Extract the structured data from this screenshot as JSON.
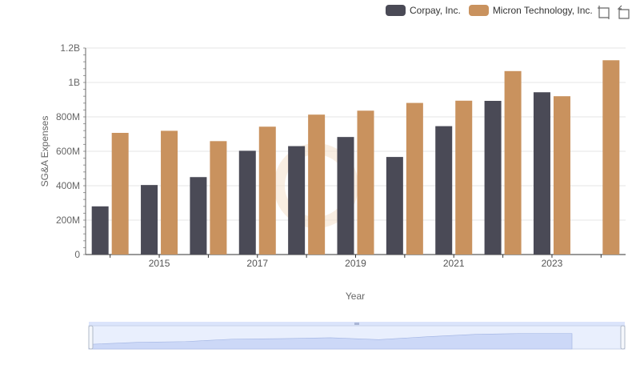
{
  "chart_data": {
    "type": "bar",
    "title": "",
    "xlabel": "Year",
    "ylabel": "SG&A Expenses",
    "x": [
      2014,
      2015,
      2016,
      2017,
      2018,
      2019,
      2020,
      2021,
      2022,
      2023,
      2024
    ],
    "xticks": [
      "2015",
      "2017",
      "2019",
      "2021",
      "2023"
    ],
    "ylim": [
      0,
      1200000000
    ],
    "yticks": [
      "0",
      "200M",
      "400M",
      "600M",
      "800M",
      "1B",
      "1.2B"
    ],
    "grid": true,
    "legend_position": "top-right",
    "series": [
      {
        "name": "Corpay, Inc.",
        "color": "#4a4a56",
        "values": [
          280000000,
          404000000,
          450000000,
          603000000,
          630000000,
          683000000,
          567000000,
          746000000,
          893000000,
          943000000,
          null
        ]
      },
      {
        "name": "Micron Technology, Inc.",
        "color": "#c9925e",
        "values": [
          707000000,
          719000000,
          659000000,
          743000000,
          813000000,
          836000000,
          881000000,
          894000000,
          1066000000,
          920000000,
          1129000000
        ]
      }
    ]
  },
  "toolbar": {
    "icons": [
      "zoom-icon",
      "restore-icon"
    ]
  }
}
